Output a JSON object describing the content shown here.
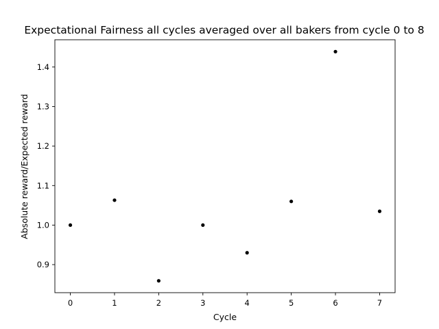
{
  "chart_data": {
    "type": "scatter",
    "title": "Expectational Fairness all cycles averaged over all bakers from cycle 0 to 8",
    "xlabel": "Cycle",
    "ylabel": "Absolute reward/Expected reward",
    "x": [
      0,
      1,
      2,
      3,
      4,
      5,
      6,
      7
    ],
    "y": [
      1.0,
      1.063,
      0.859,
      1.0,
      0.93,
      1.06,
      1.439,
      1.035
    ],
    "xticks": [
      "0",
      "1",
      "2",
      "3",
      "4",
      "5",
      "6",
      "7"
    ],
    "yticks": [
      "0.9",
      "1.0",
      "1.1",
      "1.2",
      "1.3",
      "1.4"
    ],
    "xlim": [
      -0.35,
      7.35
    ],
    "ylim": [
      0.829,
      1.469
    ],
    "grid": false,
    "marker_color": "#000000"
  }
}
